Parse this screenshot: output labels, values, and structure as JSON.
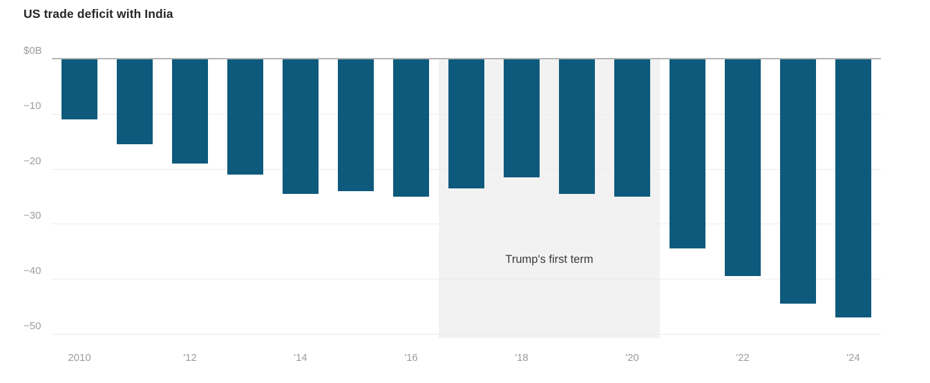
{
  "chart_data": {
    "type": "bar",
    "title": "US trade deficit with India",
    "xlabel": "",
    "ylabel": "",
    "unit": "billions of US dollars",
    "categories": [
      2010,
      2011,
      2012,
      2013,
      2014,
      2015,
      2016,
      2017,
      2018,
      2019,
      2020,
      2021,
      2022,
      2023,
      2024
    ],
    "values": [
      -11,
      -15.5,
      -19,
      -21,
      -24.5,
      -24,
      -25,
      -23.5,
      -21.5,
      -24.5,
      -25,
      -34.5,
      -39.5,
      -44.5,
      -47
    ],
    "ylim": [
      -50,
      0
    ],
    "yticks": [
      0,
      -10,
      -20,
      -30,
      -40,
      -50
    ],
    "ytick_labels": [
      "$0B",
      "−10",
      "−20",
      "−30",
      "−40",
      "−50"
    ],
    "xticks": [
      {
        "year": 2010,
        "label": "2010"
      },
      {
        "year": 2012,
        "label": "'12"
      },
      {
        "year": 2014,
        "label": "'14"
      },
      {
        "year": 2016,
        "label": "'16"
      },
      {
        "year": 2018,
        "label": "'18"
      },
      {
        "year": 2020,
        "label": "'20"
      },
      {
        "year": 2022,
        "label": "'22"
      },
      {
        "year": 2024,
        "label": "'24"
      }
    ],
    "grid": true,
    "legend": "none",
    "annotation": {
      "label": "Trump's first term",
      "x_start": 2017,
      "x_end": 2020
    },
    "colors": {
      "bar": "#0e5a7c",
      "annotation_bg": "#f2f2f2",
      "annotation_text": "#3a3a3a",
      "zero_line": "#b3b3b3",
      "gridline": "#ebebeb",
      "axis_text": "#9c9c9c",
      "title_text": "#262626"
    }
  }
}
